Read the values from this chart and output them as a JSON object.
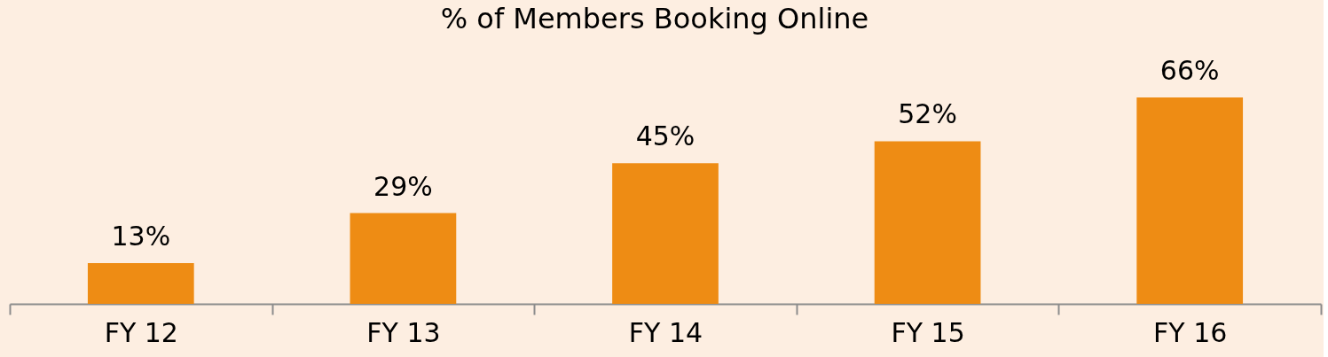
{
  "chart_data": {
    "type": "bar",
    "title": "% of Members Booking Online",
    "categories": [
      "FY 12",
      "FY 13",
      "FY 14",
      "FY 15",
      "FY 16"
    ],
    "values": [
      13,
      29,
      45,
      52,
      66
    ],
    "color": "#ee8c14",
    "value_labels": [
      "13%",
      "29%",
      "45%",
      "52%",
      "66%"
    ]
  }
}
